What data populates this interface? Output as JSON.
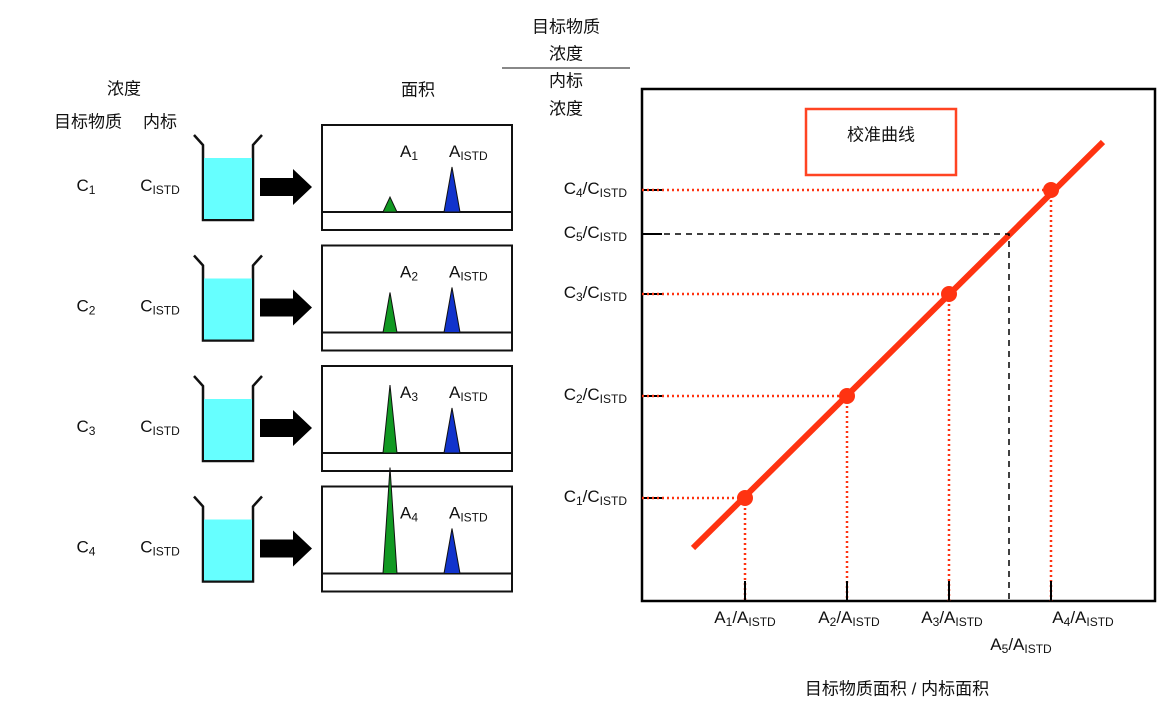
{
  "left": {
    "header_conc": "浓度",
    "header_target": "目标物质",
    "header_istd": "内标",
    "header_area": "面积",
    "rows": [
      {
        "conc": [
          "C",
          "1"
        ],
        "istd": [
          "C",
          "ISTD"
        ],
        "peak": [
          "A",
          "1"
        ],
        "peak_istd": [
          "A",
          "ISTD"
        ]
      },
      {
        "conc": [
          "C",
          "2"
        ],
        "istd": [
          "C",
          "ISTD"
        ],
        "peak": [
          "A",
          "2"
        ],
        "peak_istd": [
          "A",
          "ISTD"
        ]
      },
      {
        "conc": [
          "C",
          "3"
        ],
        "istd": [
          "C",
          "ISTD"
        ],
        "peak": [
          "A",
          "3"
        ],
        "peak_istd": [
          "A",
          "ISTD"
        ]
      },
      {
        "conc": [
          "C",
          "4"
        ],
        "istd": [
          "C",
          "ISTD"
        ],
        "peak": [
          "A",
          "4"
        ],
        "peak_istd": [
          "A",
          "ISTD"
        ]
      }
    ]
  },
  "calibration": {
    "y_title_num": [
      "目标物质",
      "浓度"
    ],
    "y_title_den": [
      "内标",
      "浓度"
    ],
    "title": "校准曲线",
    "y_labels": [
      [
        "C",
        "4",
        "/C",
        "ISTD"
      ],
      [
        "C",
        "5",
        "/C",
        "ISTD"
      ],
      [
        "C",
        "3",
        "/C",
        "ISTD"
      ],
      [
        "C",
        "2",
        "/C",
        "ISTD"
      ],
      [
        "C",
        "1",
        "/C",
        "ISTD"
      ]
    ],
    "x_labels": [
      [
        "A",
        "1",
        "/A",
        "ISTD"
      ],
      [
        "A",
        "2",
        "/A",
        "ISTD"
      ],
      [
        "A",
        "3",
        "/A",
        "ISTD"
      ],
      [
        "A",
        "4",
        "/A",
        "ISTD"
      ],
      [
        "A",
        "5",
        "/A",
        "ISTD"
      ]
    ],
    "x_title": "目标物质面积 / 内标面积"
  }
}
